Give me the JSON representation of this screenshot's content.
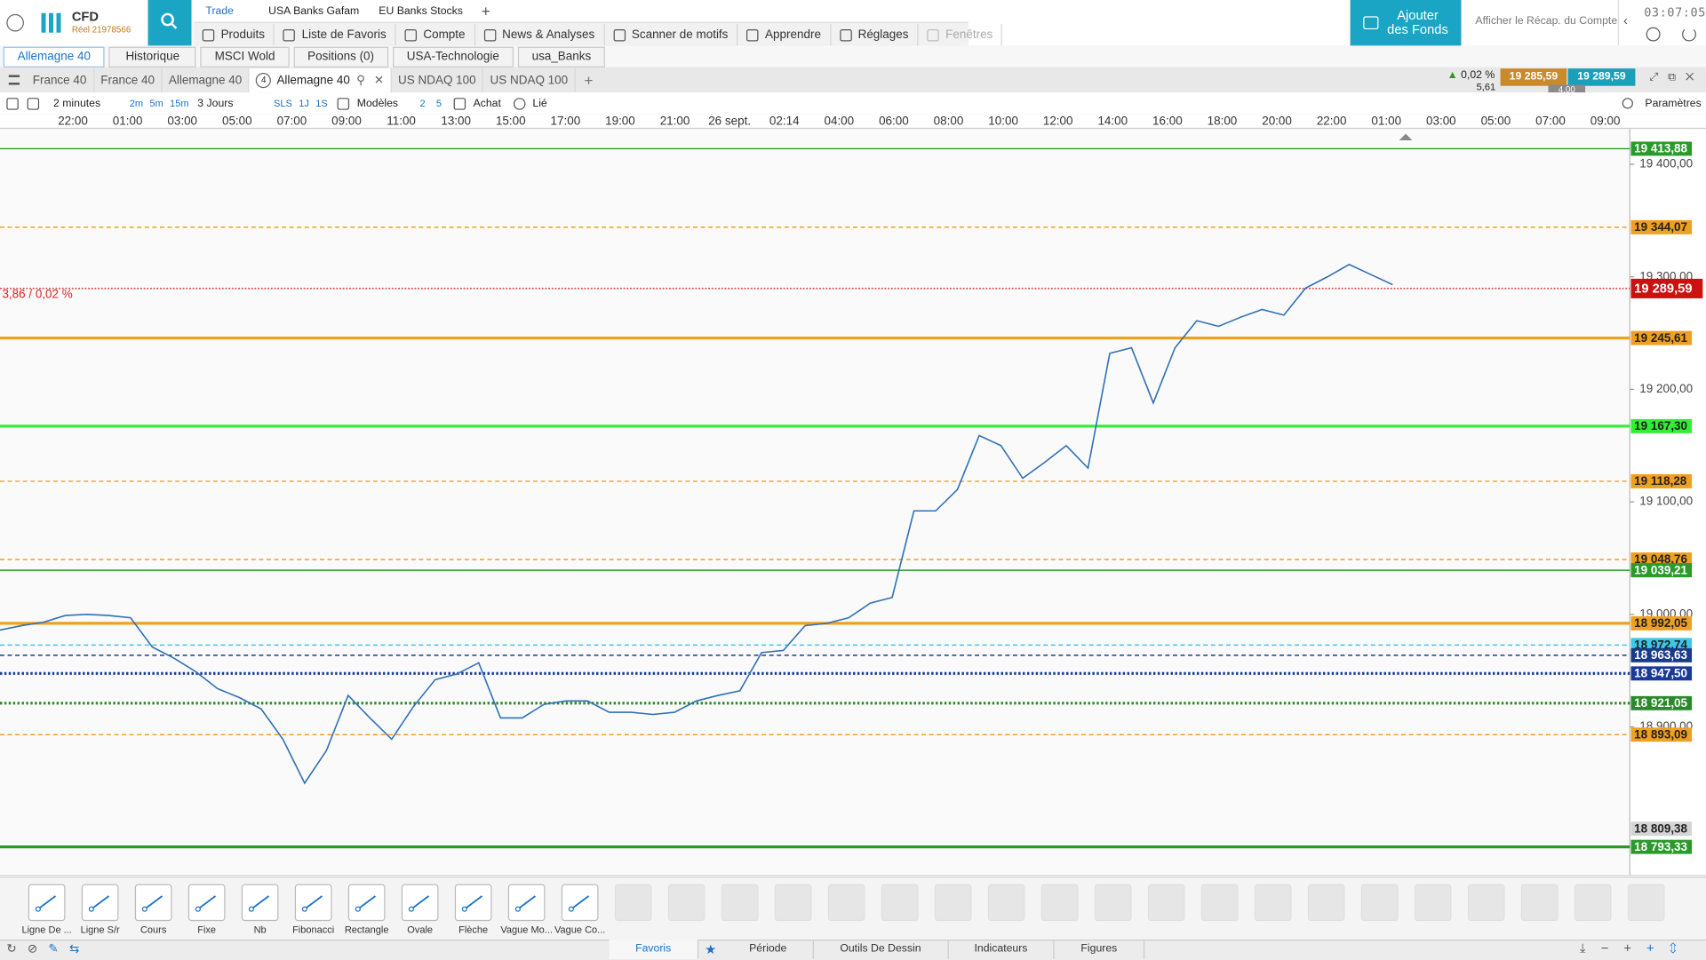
{
  "account": {
    "product": "CFD",
    "account": "Réel 21978566",
    "clock": "03:07:05",
    "fund_button": "Ajouter des Fonds",
    "recap": "Afficher le Récap. du Compte"
  },
  "top_tabs": [
    "Trade",
    "USA Banks Gafam",
    "EU Banks Stocks"
  ],
  "menu": [
    "Produits",
    "Liste de Favoris",
    "Compte",
    "News & Analyses",
    "Scanner de motifs",
    "Apprendre",
    "Réglages",
    "Fenêtres"
  ],
  "panel_tabs": [
    "Allemagne 40",
    "Historique",
    "MSCI Wold",
    "Positions (0)",
    "USA-Technologie",
    "usa_Banks"
  ],
  "chart_tabs": [
    {
      "label": "France 40"
    },
    {
      "label": "France 40"
    },
    {
      "label": "Allemagne 40"
    },
    {
      "label": "Allemagne 40",
      "badge": "4"
    },
    {
      "label": "US NDAQ 100"
    },
    {
      "label": "US NDAQ 100"
    }
  ],
  "quote": {
    "change": "0,02 %",
    "change_points": "5,61",
    "sell": "19 285,59",
    "buy": "19 289,59",
    "spread": "4,00"
  },
  "toolbar": {
    "interval": "2 minutes",
    "quick_intervals": [
      "2m",
      "5m",
      "15m"
    ],
    "range": "3 Jours",
    "sls": "SLS",
    "quick_ranges": [
      "1J",
      "1S"
    ],
    "templates": "Modèles",
    "template_counts": [
      "2",
      "5"
    ],
    "side": "Achat",
    "link": "Lié",
    "settings": "Paramètres"
  },
  "chart": {
    "type": "line",
    "time_labels": [
      "22:00",
      "01:00",
      "03:00",
      "05:00",
      "07:00",
      "09:00",
      "11:00",
      "13:00",
      "15:00",
      "17:00",
      "19:00",
      "21:00",
      "26 sept.",
      "02:14",
      "04:00",
      "06:00",
      "08:00",
      "10:00",
      "12:00",
      "14:00",
      "16:00",
      "18:00",
      "20:00",
      "22:00",
      "01:00",
      "03:00",
      "05:00",
      "07:00",
      "09:00"
    ],
    "ylim": [
      18768,
      19432
    ],
    "yticks": [
      {
        "value": 18900,
        "label": "18 900,00"
      },
      {
        "value": 19000,
        "label": "19 000,00"
      },
      {
        "value": 19100,
        "label": "19 100,00"
      },
      {
        "value": 19200,
        "label": "19 200,00"
      },
      {
        "value": 19300,
        "label": "19 300,00"
      },
      {
        "value": 19400,
        "label": "19 400,00"
      }
    ],
    "change_label": "3,86 / 0,02 %",
    "price": {
      "color": "#2f6fb5",
      "values": [
        18986,
        18990,
        18993,
        18999,
        19000,
        18999,
        18997,
        18971,
        18961,
        18949,
        18934,
        18926,
        18916,
        18889,
        18850,
        18879,
        18928,
        18908,
        18889,
        18918,
        18942,
        18947,
        18957,
        18908,
        18908,
        18920,
        18923,
        18923,
        18913,
        18913,
        18911,
        18913,
        18923,
        18928,
        18932,
        18966,
        18968,
        18990,
        18992,
        18997,
        19010,
        19015,
        19092,
        19092,
        19111,
        19159,
        19150,
        19121,
        19135,
        19150,
        19130,
        19232,
        19237,
        19188,
        19237,
        19261,
        19256,
        19264,
        19271,
        19266,
        19290,
        19300,
        19311,
        19302,
        19293
      ]
    },
    "levels": [
      {
        "value": 19413.88,
        "label": "19 413,88",
        "color": "#2a9a2a",
        "style": "solid"
      },
      {
        "value": 19344.07,
        "label": "19 344,07",
        "color": "#f0a020",
        "style": "dashed"
      },
      {
        "value": 19245.61,
        "label": "19 245,61",
        "color": "#f0a020",
        "style": "solid-thick"
      },
      {
        "value": 19167.3,
        "label": "19 167,30",
        "color": "#33ee33",
        "style": "solid-thick"
      },
      {
        "value": 19118.28,
        "label": "19 118,28",
        "color": "#f0a020",
        "style": "dashed"
      },
      {
        "value": 19048.76,
        "label": "19 048,76",
        "color": "#f0a020",
        "style": "dashed"
      },
      {
        "value": 19039.21,
        "label": "19 039,21",
        "color": "#2a9a2a",
        "style": "solid"
      },
      {
        "value": 18992.05,
        "label": "18 992,05",
        "color": "#f0a020",
        "style": "solid-thick"
      },
      {
        "value": 18972.74,
        "label": "18 972,74",
        "color": "#3cc8e8",
        "style": "dashed"
      },
      {
        "value": 18963.63,
        "label": "18 963,63",
        "color": "#1a3a8a",
        "style": "dashed"
      },
      {
        "value": 18947.5,
        "label": "18 947,50",
        "color": "#1a3a9a",
        "style": "dotted-thick"
      },
      {
        "value": 18921.05,
        "label": "18 921,05",
        "color": "#2a8a2a",
        "style": "dotted-thick"
      },
      {
        "value": 18893.09,
        "label": "18 893,09",
        "color": "#f0a020",
        "style": "dashed"
      },
      {
        "value": 18809.38,
        "label": "18 809,38",
        "color": "#d4d4d4",
        "style": "marker"
      },
      {
        "value": 18793.33,
        "label": "18 793,33",
        "color": "#2a9a2a",
        "style": "solid-thick"
      },
      {
        "value": 19289.59,
        "label": "19 289,59",
        "color": "#cc1111",
        "style": "current"
      }
    ]
  },
  "drawing_tools": [
    "Ligne De ...",
    "Ligne S/r",
    "Cours",
    "Fixe",
    "Nb",
    "Fibonacci",
    "Rectangle",
    "Ovale",
    "Flèche",
    "Vague Mo...",
    "Vague Co..."
  ],
  "bottom_tabs": [
    "Favoris",
    "Période",
    "Outils De Dessin",
    "Indicateurs",
    "Figures"
  ]
}
